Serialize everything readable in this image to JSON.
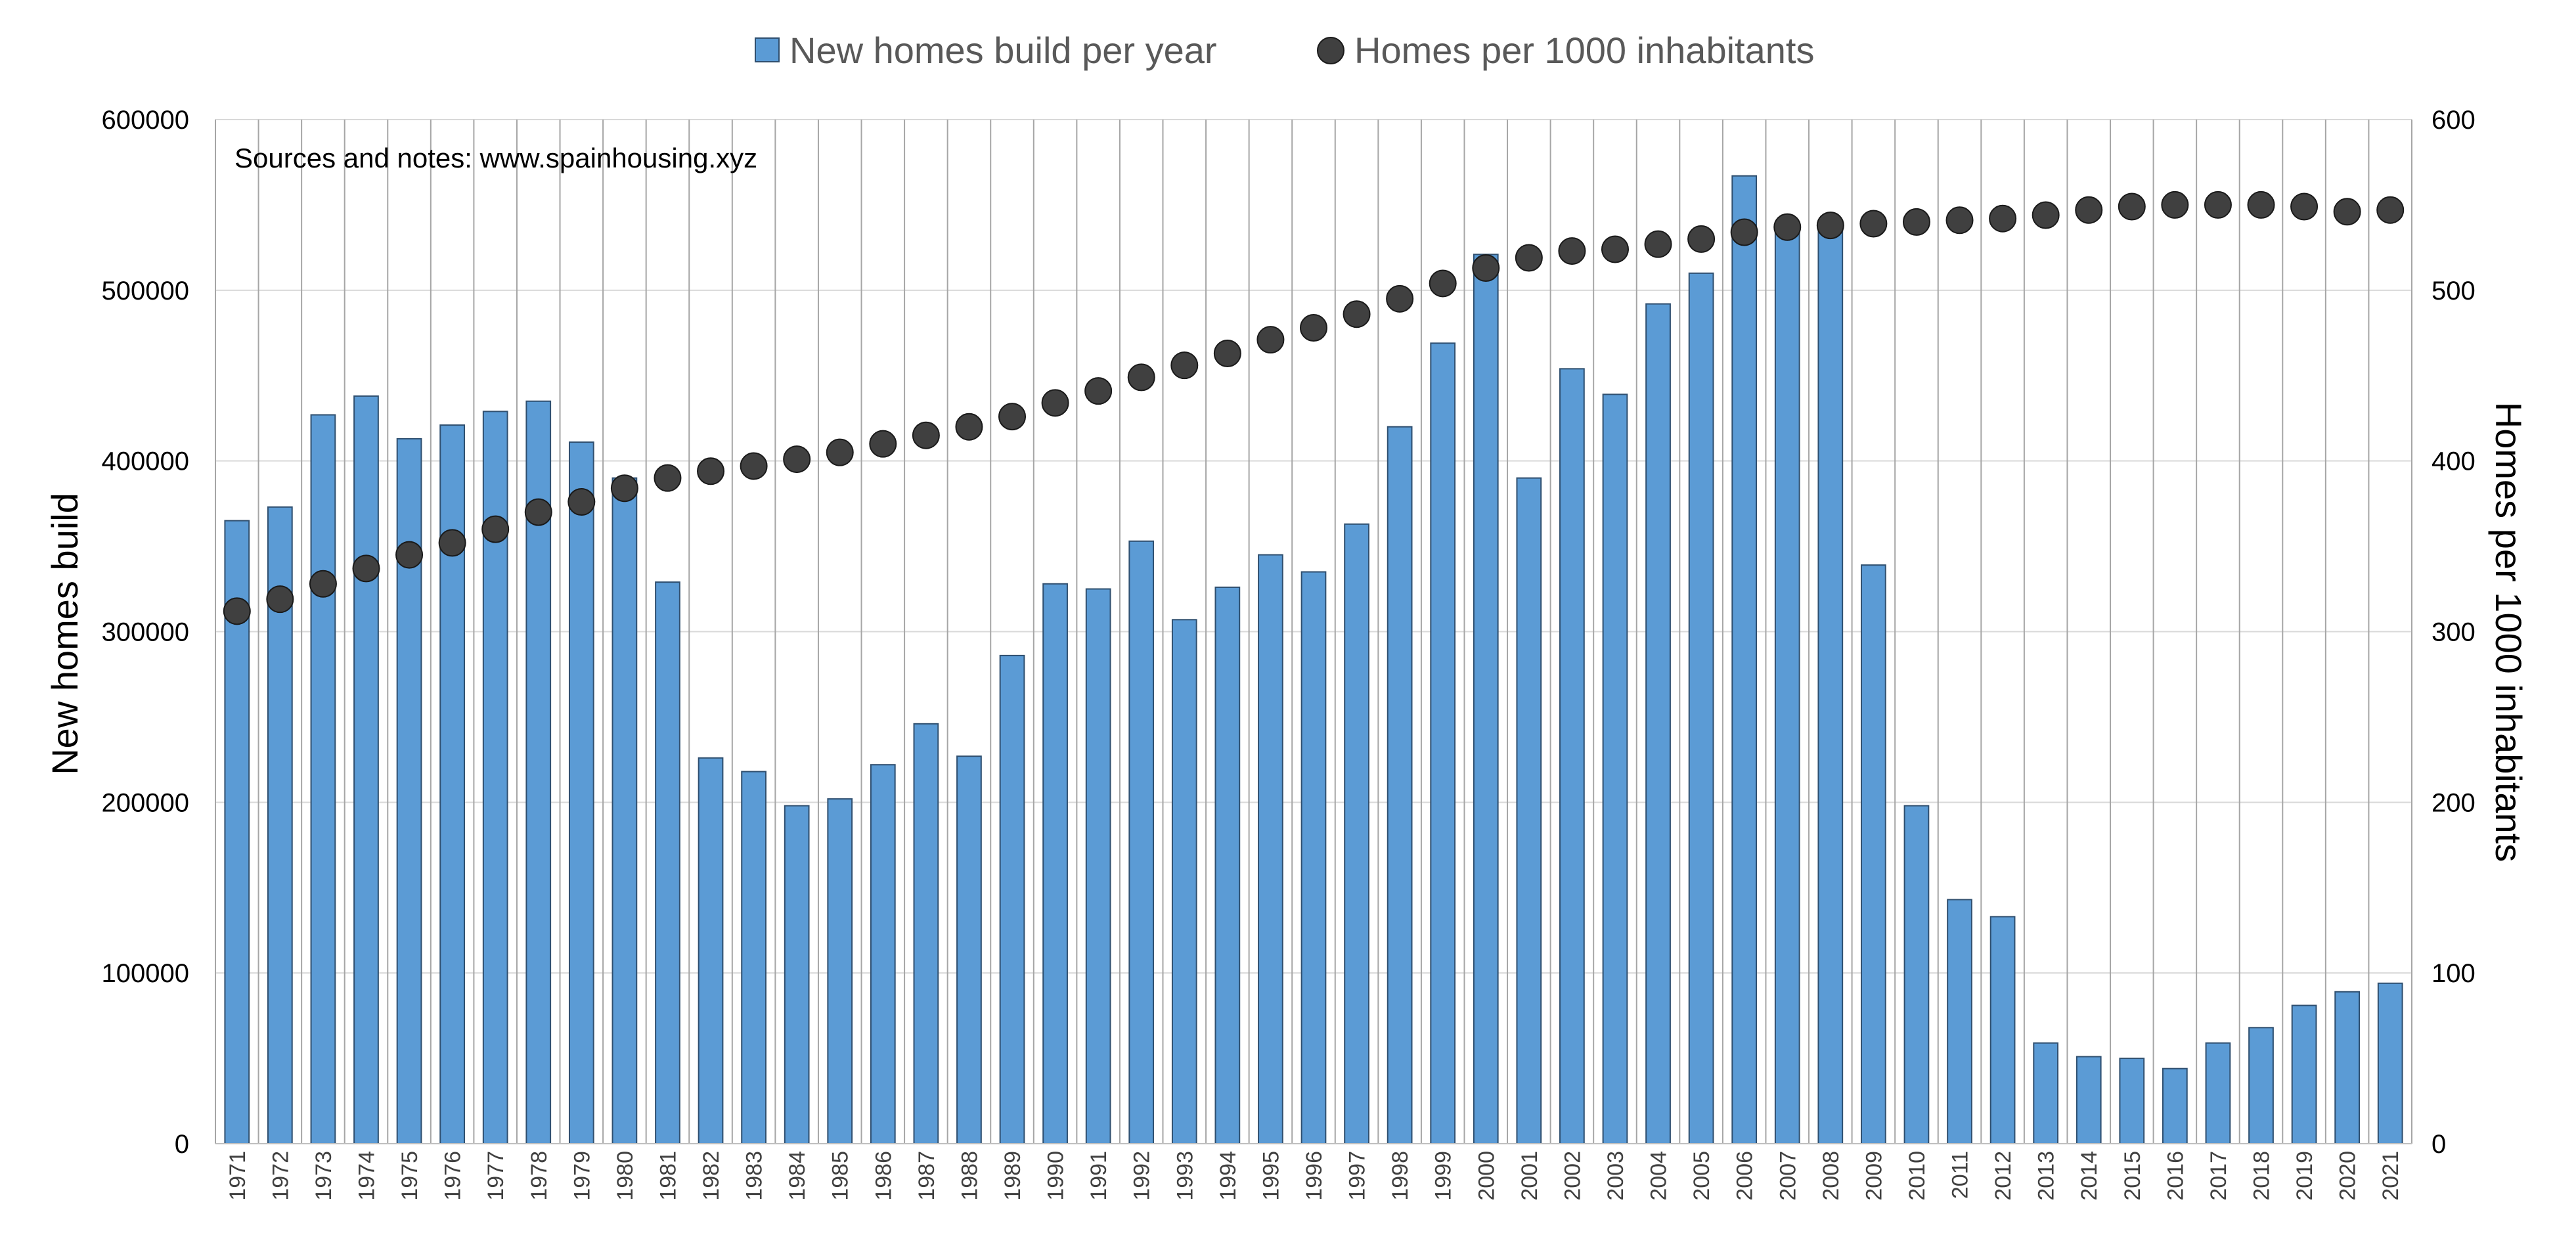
{
  "chart_data": {
    "type": "bar",
    "title": "",
    "note": "Sources and notes: www.spainhousing.xyz",
    "xlabel": "",
    "ylabel": "New homes build",
    "ylabel_right": "Homes per 1000 inhabitants",
    "ylim": [
      0,
      600000
    ],
    "ylim_right": [
      0,
      600
    ],
    "yticks": [
      "0",
      "100000",
      "200000",
      "300000",
      "400000",
      "500000",
      "600000"
    ],
    "yticks_right": [
      "0",
      "100",
      "200",
      "300",
      "400",
      "500",
      "600"
    ],
    "grid": true,
    "legend_position": "top",
    "categories": [
      "1971",
      "1972",
      "1973",
      "1974",
      "1975",
      "1976",
      "1977",
      "1978",
      "1979",
      "1980",
      "1981",
      "1982",
      "1983",
      "1984",
      "1985",
      "1986",
      "1987",
      "1988",
      "1989",
      "1990",
      "1991",
      "1992",
      "1993",
      "1994",
      "1995",
      "1996",
      "1997",
      "1998",
      "1999",
      "2000",
      "2001",
      "2002",
      "2003",
      "2004",
      "2005",
      "2006",
      "2007",
      "2008",
      "2009",
      "2010",
      "2011",
      "2012",
      "2013",
      "2014",
      "2015",
      "2016",
      "2017",
      "2018",
      "2019",
      "2020",
      "2021"
    ],
    "series": [
      {
        "name": "New homes build per year",
        "type": "bar",
        "axis": "left",
        "color": "#5b9bd5",
        "values": [
          365000,
          373000,
          427000,
          438000,
          413000,
          421000,
          429000,
          435000,
          411000,
          390000,
          329000,
          226000,
          218000,
          198000,
          202000,
          222000,
          246000,
          227000,
          286000,
          328000,
          325000,
          353000,
          307000,
          326000,
          345000,
          335000,
          363000,
          420000,
          469000,
          521000,
          390000,
          454000,
          439000,
          492000,
          510000,
          567000,
          535000,
          535000,
          339000,
          198000,
          143000,
          133000,
          59000,
          51000,
          50000,
          44000,
          59000,
          68000,
          81000,
          89000,
          94000
        ]
      },
      {
        "name": "Homes per 1000 inhabitants",
        "type": "scatter",
        "axis": "right",
        "color": "#404040",
        "values": [
          312,
          319,
          328,
          337,
          345,
          352,
          360,
          370,
          376,
          384,
          390,
          394,
          397,
          401,
          405,
          410,
          415,
          420,
          426,
          434,
          441,
          449,
          456,
          463,
          471,
          478,
          486,
          495,
          504,
          513,
          519,
          523,
          524,
          527,
          530,
          534,
          537,
          538,
          539,
          540,
          541,
          542,
          544,
          547,
          549,
          550,
          550,
          550,
          549,
          546,
          547
        ]
      }
    ]
  }
}
